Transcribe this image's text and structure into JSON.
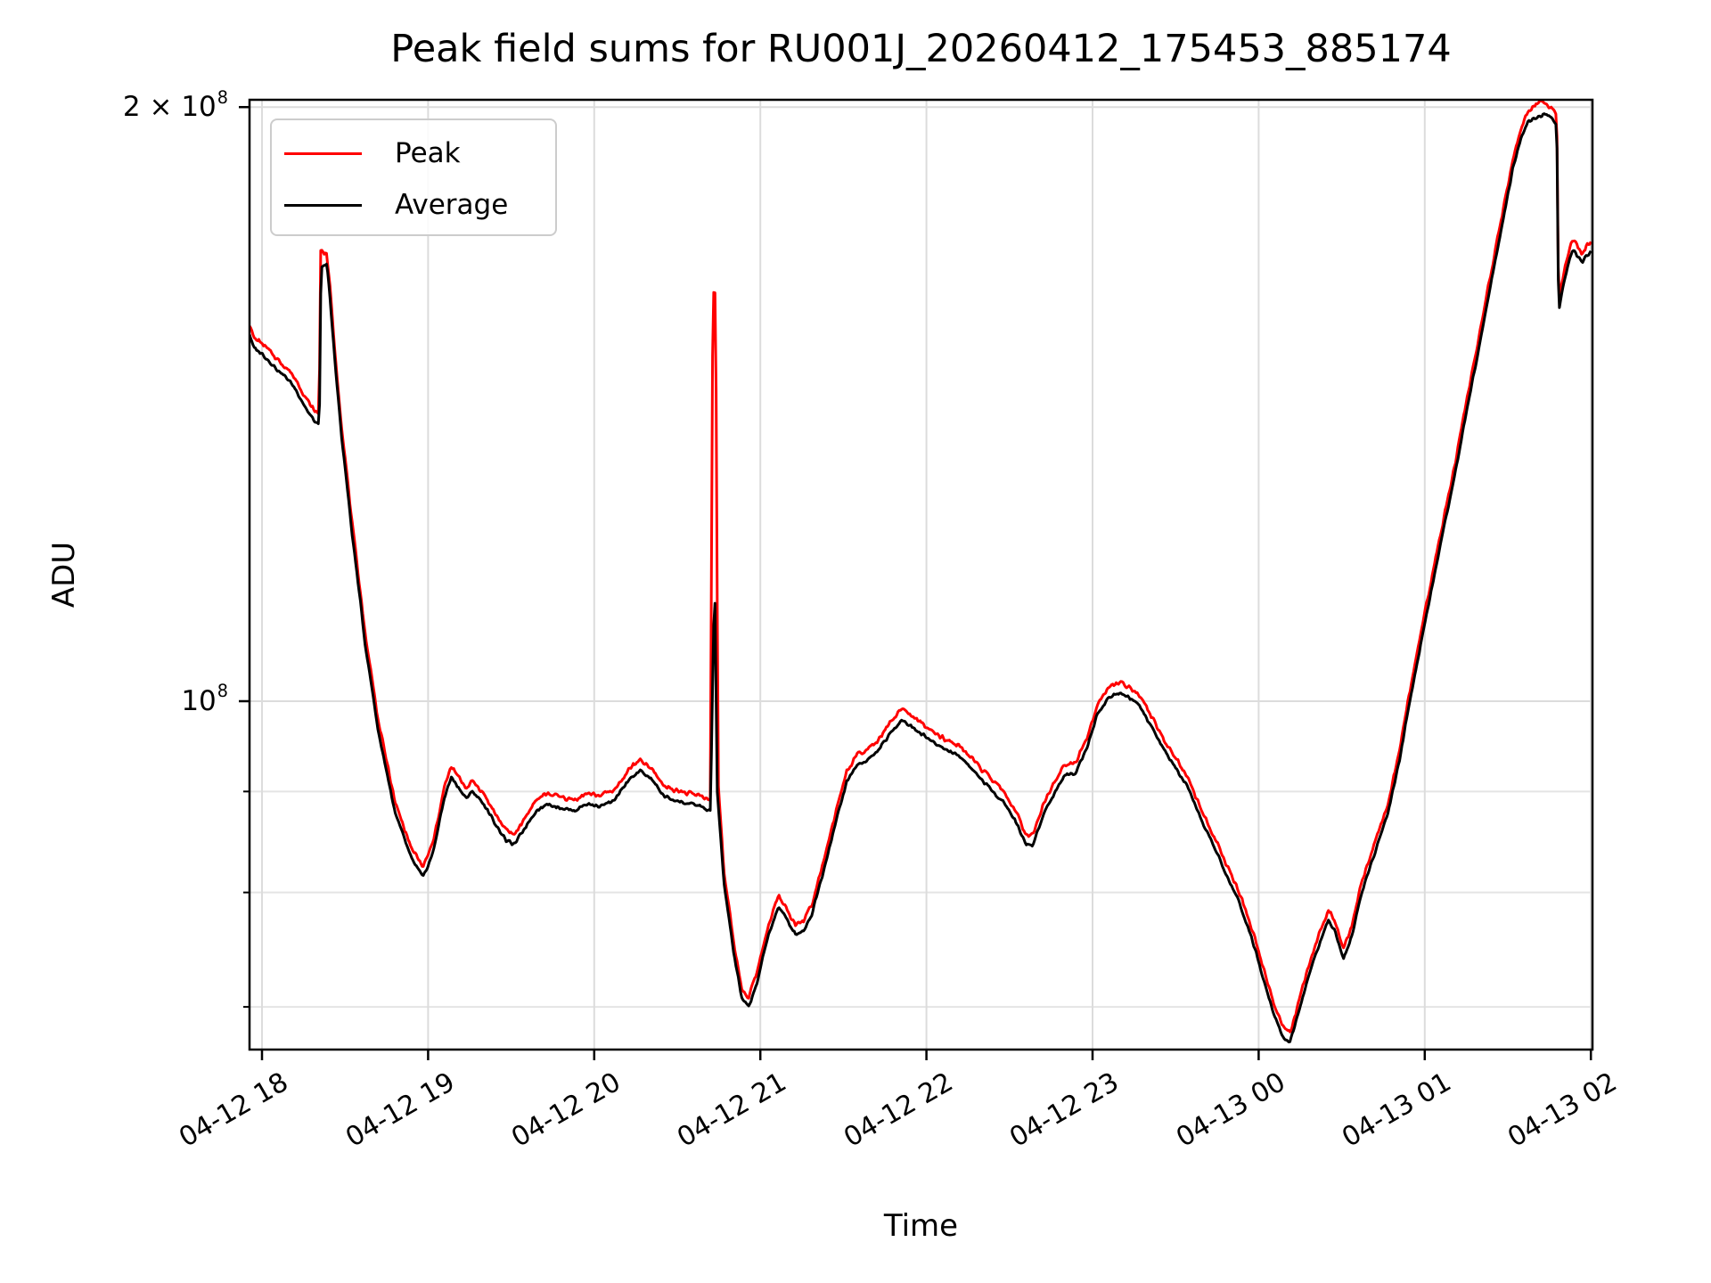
{
  "title": "Peak field sums for RU001J_20260412_175453_885174",
  "axes": {
    "xlabel": "Time",
    "ylabel": "ADU",
    "x_ticks": [
      {
        "hour": 18,
        "label": "04-12 18"
      },
      {
        "hour": 19,
        "label": "04-12 19"
      },
      {
        "hour": 20,
        "label": "04-12 20"
      },
      {
        "hour": 21,
        "label": "04-12 21"
      },
      {
        "hour": 22,
        "label": "04-12 22"
      },
      {
        "hour": 23,
        "label": "04-12 23"
      },
      {
        "hour": 24,
        "label": "04-13 00"
      },
      {
        "hour": 25,
        "label": "04-13 01"
      },
      {
        "hour": 26,
        "label": "04-13 02"
      }
    ],
    "y_ticks": [
      {
        "value_1e8": 1.0,
        "base": "10",
        "exp": "8"
      },
      {
        "value_1e8": 2.0,
        "base": "2 × 10",
        "exp": "8"
      }
    ],
    "y_minor_values_1e8": [
      0.7,
      0.8,
      0.9
    ],
    "grid_color_major": "#dcdcdc",
    "grid_color_minor": "#e4e4e4",
    "spine_color": "#000000"
  },
  "legend": {
    "items": [
      {
        "label": "Peak",
        "color": "#ff0000"
      },
      {
        "label": "Average",
        "color": "#000000"
      }
    ]
  },
  "chart_data": {
    "type": "line",
    "title": "Peak field sums for RU001J_20260412_175453_885174",
    "xlabel": "Time",
    "ylabel": "ADU",
    "x_unit": "hours since 2026-04-12 00:00 (18 = 04-12 18:00, 26 = 04-13 02:00)",
    "x_range": [
      17.925,
      26.0
    ],
    "y_scale": "log",
    "y_unit": "1e8 ADU",
    "y_range_1e8": [
      0.666,
      2.02
    ],
    "legend_position": "upper left",
    "grid": true,
    "series": [
      {
        "name": "Peak",
        "color": "#ff0000",
        "points": [
          [
            17.925,
            1.553
          ],
          [
            17.95,
            1.528
          ],
          [
            18.0,
            1.518
          ],
          [
            18.05,
            1.503
          ],
          [
            18.1,
            1.488
          ],
          [
            18.16,
            1.472
          ],
          [
            18.2,
            1.457
          ],
          [
            18.24,
            1.437
          ],
          [
            18.28,
            1.417
          ],
          [
            18.32,
            1.402
          ],
          [
            18.345,
            1.397
          ],
          [
            18.35,
            1.695
          ],
          [
            18.39,
            1.684
          ],
          [
            18.41,
            1.619
          ],
          [
            18.44,
            1.498
          ],
          [
            18.48,
            1.376
          ],
          [
            18.54,
            1.235
          ],
          [
            18.62,
            1.083
          ],
          [
            18.7,
            0.977
          ],
          [
            18.8,
            0.889
          ],
          [
            18.9,
            0.842
          ],
          [
            18.97,
            0.824
          ],
          [
            19.03,
            0.848
          ],
          [
            19.1,
            0.906
          ],
          [
            19.14,
            0.926
          ],
          [
            19.18,
            0.916
          ],
          [
            19.23,
            0.904
          ],
          [
            19.27,
            0.911
          ],
          [
            19.33,
            0.899
          ],
          [
            19.4,
            0.878
          ],
          [
            19.47,
            0.86
          ],
          [
            19.52,
            0.856
          ],
          [
            19.58,
            0.872
          ],
          [
            19.65,
            0.891
          ],
          [
            19.72,
            0.898
          ],
          [
            19.8,
            0.894
          ],
          [
            19.88,
            0.891
          ],
          [
            19.95,
            0.898
          ],
          [
            20.03,
            0.896
          ],
          [
            20.12,
            0.901
          ],
          [
            20.22,
            0.926
          ],
          [
            20.28,
            0.933
          ],
          [
            20.35,
            0.923
          ],
          [
            20.42,
            0.906
          ],
          [
            20.5,
            0.901
          ],
          [
            20.57,
            0.898
          ],
          [
            20.64,
            0.896
          ],
          [
            20.7,
            0.89
          ],
          [
            20.715,
            1.61
          ],
          [
            20.73,
            1.61
          ],
          [
            20.745,
            0.915
          ],
          [
            20.78,
            0.82
          ],
          [
            20.84,
            0.754
          ],
          [
            20.89,
            0.714
          ],
          [
            20.93,
            0.708
          ],
          [
            20.98,
            0.729
          ],
          [
            21.05,
            0.771
          ],
          [
            21.11,
            0.797
          ],
          [
            21.16,
            0.784
          ],
          [
            21.21,
            0.771
          ],
          [
            21.26,
            0.774
          ],
          [
            21.31,
            0.789
          ],
          [
            21.38,
            0.83
          ],
          [
            21.46,
            0.882
          ],
          [
            21.52,
            0.921
          ],
          [
            21.58,
            0.939
          ],
          [
            21.64,
            0.944
          ],
          [
            21.7,
            0.953
          ],
          [
            21.78,
            0.974
          ],
          [
            21.85,
            0.991
          ],
          [
            21.9,
            0.984
          ],
          [
            21.97,
            0.975
          ],
          [
            22.05,
            0.963
          ],
          [
            22.13,
            0.955
          ],
          [
            22.2,
            0.949
          ],
          [
            22.27,
            0.936
          ],
          [
            22.33,
            0.924
          ],
          [
            22.4,
            0.911
          ],
          [
            22.47,
            0.899
          ],
          [
            22.54,
            0.878
          ],
          [
            22.6,
            0.856
          ],
          [
            22.64,
            0.855
          ],
          [
            22.7,
            0.885
          ],
          [
            22.76,
            0.906
          ],
          [
            22.83,
            0.928
          ],
          [
            22.9,
            0.931
          ],
          [
            22.97,
            0.961
          ],
          [
            23.03,
            0.997
          ],
          [
            23.1,
            1.017
          ],
          [
            23.16,
            1.022
          ],
          [
            23.22,
            1.017
          ],
          [
            23.28,
            1.007
          ],
          [
            23.35,
            0.984
          ],
          [
            23.43,
            0.956
          ],
          [
            23.5,
            0.936
          ],
          [
            23.57,
            0.916
          ],
          [
            23.65,
            0.882
          ],
          [
            23.73,
            0.855
          ],
          [
            23.8,
            0.828
          ],
          [
            23.88,
            0.802
          ],
          [
            23.95,
            0.771
          ],
          [
            24.02,
            0.737
          ],
          [
            24.09,
            0.703
          ],
          [
            24.15,
            0.683
          ],
          [
            24.19,
            0.68
          ],
          [
            24.25,
            0.708
          ],
          [
            24.31,
            0.739
          ],
          [
            24.37,
            0.764
          ],
          [
            24.42,
            0.784
          ],
          [
            24.46,
            0.774
          ],
          [
            24.51,
            0.749
          ],
          [
            24.56,
            0.769
          ],
          [
            24.62,
            0.81
          ],
          [
            24.7,
            0.848
          ],
          [
            24.78,
            0.888
          ],
          [
            24.85,
            0.946
          ],
          [
            24.9,
            1.002
          ],
          [
            24.95,
            1.052
          ],
          [
            25.0,
            1.108
          ],
          [
            25.06,
            1.174
          ],
          [
            25.12,
            1.245
          ],
          [
            25.18,
            1.316
          ],
          [
            25.25,
            1.417
          ],
          [
            25.32,
            1.518
          ],
          [
            25.4,
            1.65
          ],
          [
            25.47,
            1.771
          ],
          [
            25.53,
            1.882
          ],
          [
            25.58,
            1.953
          ],
          [
            25.62,
            1.99
          ],
          [
            25.67,
            2.005
          ],
          [
            25.7,
            2.015
          ],
          [
            25.72,
            2.01
          ],
          [
            25.76,
            2.0
          ],
          [
            25.795,
            1.985
          ],
          [
            25.805,
            1.594
          ],
          [
            25.83,
            1.639
          ],
          [
            25.86,
            1.68
          ],
          [
            25.89,
            1.715
          ],
          [
            25.92,
            1.7
          ],
          [
            25.95,
            1.685
          ],
          [
            25.97,
            1.7
          ],
          [
            26.0,
            1.71
          ]
        ]
      },
      {
        "name": "Average",
        "color": "#000000",
        "points": [
          [
            17.925,
            1.535
          ],
          [
            17.95,
            1.51
          ],
          [
            18.0,
            1.5
          ],
          [
            18.05,
            1.485
          ],
          [
            18.1,
            1.47
          ],
          [
            18.16,
            1.455
          ],
          [
            18.2,
            1.44
          ],
          [
            18.24,
            1.42
          ],
          [
            18.28,
            1.4
          ],
          [
            18.32,
            1.385
          ],
          [
            18.345,
            1.38
          ],
          [
            18.355,
            1.655
          ],
          [
            18.39,
            1.665
          ],
          [
            18.41,
            1.6
          ],
          [
            18.44,
            1.48
          ],
          [
            18.48,
            1.36
          ],
          [
            18.54,
            1.22
          ],
          [
            18.62,
            1.07
          ],
          [
            18.7,
            0.965
          ],
          [
            18.8,
            0.878
          ],
          [
            18.9,
            0.832
          ],
          [
            18.97,
            0.814
          ],
          [
            19.03,
            0.838
          ],
          [
            19.1,
            0.895
          ],
          [
            19.14,
            0.915
          ],
          [
            19.18,
            0.905
          ],
          [
            19.23,
            0.893
          ],
          [
            19.27,
            0.9
          ],
          [
            19.33,
            0.888
          ],
          [
            19.4,
            0.868
          ],
          [
            19.47,
            0.85
          ],
          [
            19.52,
            0.846
          ],
          [
            19.58,
            0.862
          ],
          [
            19.65,
            0.88
          ],
          [
            19.72,
            0.887
          ],
          [
            19.8,
            0.883
          ],
          [
            19.88,
            0.88
          ],
          [
            19.95,
            0.887
          ],
          [
            20.03,
            0.885
          ],
          [
            20.12,
            0.89
          ],
          [
            20.22,
            0.915
          ],
          [
            20.28,
            0.922
          ],
          [
            20.35,
            0.912
          ],
          [
            20.42,
            0.895
          ],
          [
            20.5,
            0.89
          ],
          [
            20.57,
            0.887
          ],
          [
            20.64,
            0.885
          ],
          [
            20.7,
            0.879
          ],
          [
            20.725,
            1.15
          ],
          [
            20.74,
            0.9
          ],
          [
            20.78,
            0.81
          ],
          [
            20.84,
            0.745
          ],
          [
            20.89,
            0.706
          ],
          [
            20.93,
            0.7
          ],
          [
            20.98,
            0.72
          ],
          [
            21.05,
            0.762
          ],
          [
            21.11,
            0.787
          ],
          [
            21.16,
            0.775
          ],
          [
            21.21,
            0.762
          ],
          [
            21.26,
            0.765
          ],
          [
            21.31,
            0.78
          ],
          [
            21.38,
            0.82
          ],
          [
            21.46,
            0.872
          ],
          [
            21.52,
            0.91
          ],
          [
            21.58,
            0.928
          ],
          [
            21.64,
            0.933
          ],
          [
            21.7,
            0.942
          ],
          [
            21.78,
            0.962
          ],
          [
            21.85,
            0.979
          ],
          [
            21.9,
            0.972
          ],
          [
            21.97,
            0.963
          ],
          [
            22.05,
            0.952
          ],
          [
            22.13,
            0.944
          ],
          [
            22.2,
            0.938
          ],
          [
            22.27,
            0.925
          ],
          [
            22.33,
            0.913
          ],
          [
            22.4,
            0.9
          ],
          [
            22.47,
            0.888
          ],
          [
            22.54,
            0.868
          ],
          [
            22.6,
            0.846
          ],
          [
            22.64,
            0.845
          ],
          [
            22.7,
            0.875
          ],
          [
            22.76,
            0.895
          ],
          [
            22.83,
            0.917
          ],
          [
            22.9,
            0.92
          ],
          [
            22.97,
            0.95
          ],
          [
            23.03,
            0.985
          ],
          [
            23.1,
            1.005
          ],
          [
            23.16,
            1.01
          ],
          [
            23.22,
            1.005
          ],
          [
            23.28,
            0.995
          ],
          [
            23.35,
            0.972
          ],
          [
            23.43,
            0.945
          ],
          [
            23.5,
            0.925
          ],
          [
            23.57,
            0.905
          ],
          [
            23.65,
            0.872
          ],
          [
            23.73,
            0.845
          ],
          [
            23.8,
            0.818
          ],
          [
            23.88,
            0.792
          ],
          [
            23.95,
            0.762
          ],
          [
            24.02,
            0.728
          ],
          [
            24.09,
            0.695
          ],
          [
            24.15,
            0.675
          ],
          [
            24.19,
            0.672
          ],
          [
            24.25,
            0.7
          ],
          [
            24.31,
            0.73
          ],
          [
            24.37,
            0.755
          ],
          [
            24.42,
            0.775
          ],
          [
            24.46,
            0.765
          ],
          [
            24.51,
            0.74
          ],
          [
            24.56,
            0.76
          ],
          [
            24.62,
            0.8
          ],
          [
            24.7,
            0.838
          ],
          [
            24.78,
            0.878
          ],
          [
            24.85,
            0.935
          ],
          [
            24.9,
            0.99
          ],
          [
            24.95,
            1.04
          ],
          [
            25.0,
            1.095
          ],
          [
            25.06,
            1.16
          ],
          [
            25.12,
            1.23
          ],
          [
            25.18,
            1.3
          ],
          [
            25.25,
            1.4
          ],
          [
            25.32,
            1.5
          ],
          [
            25.4,
            1.63
          ],
          [
            25.47,
            1.75
          ],
          [
            25.53,
            1.86
          ],
          [
            25.58,
            1.93
          ],
          [
            25.62,
            1.965
          ],
          [
            25.67,
            1.975
          ],
          [
            25.72,
            1.985
          ],
          [
            25.76,
            1.975
          ],
          [
            25.795,
            1.96
          ],
          [
            25.805,
            1.575
          ],
          [
            25.83,
            1.62
          ],
          [
            25.86,
            1.66
          ],
          [
            25.89,
            1.695
          ],
          [
            25.92,
            1.68
          ],
          [
            25.95,
            1.665
          ],
          [
            25.97,
            1.68
          ],
          [
            26.0,
            1.69
          ]
        ]
      }
    ]
  }
}
